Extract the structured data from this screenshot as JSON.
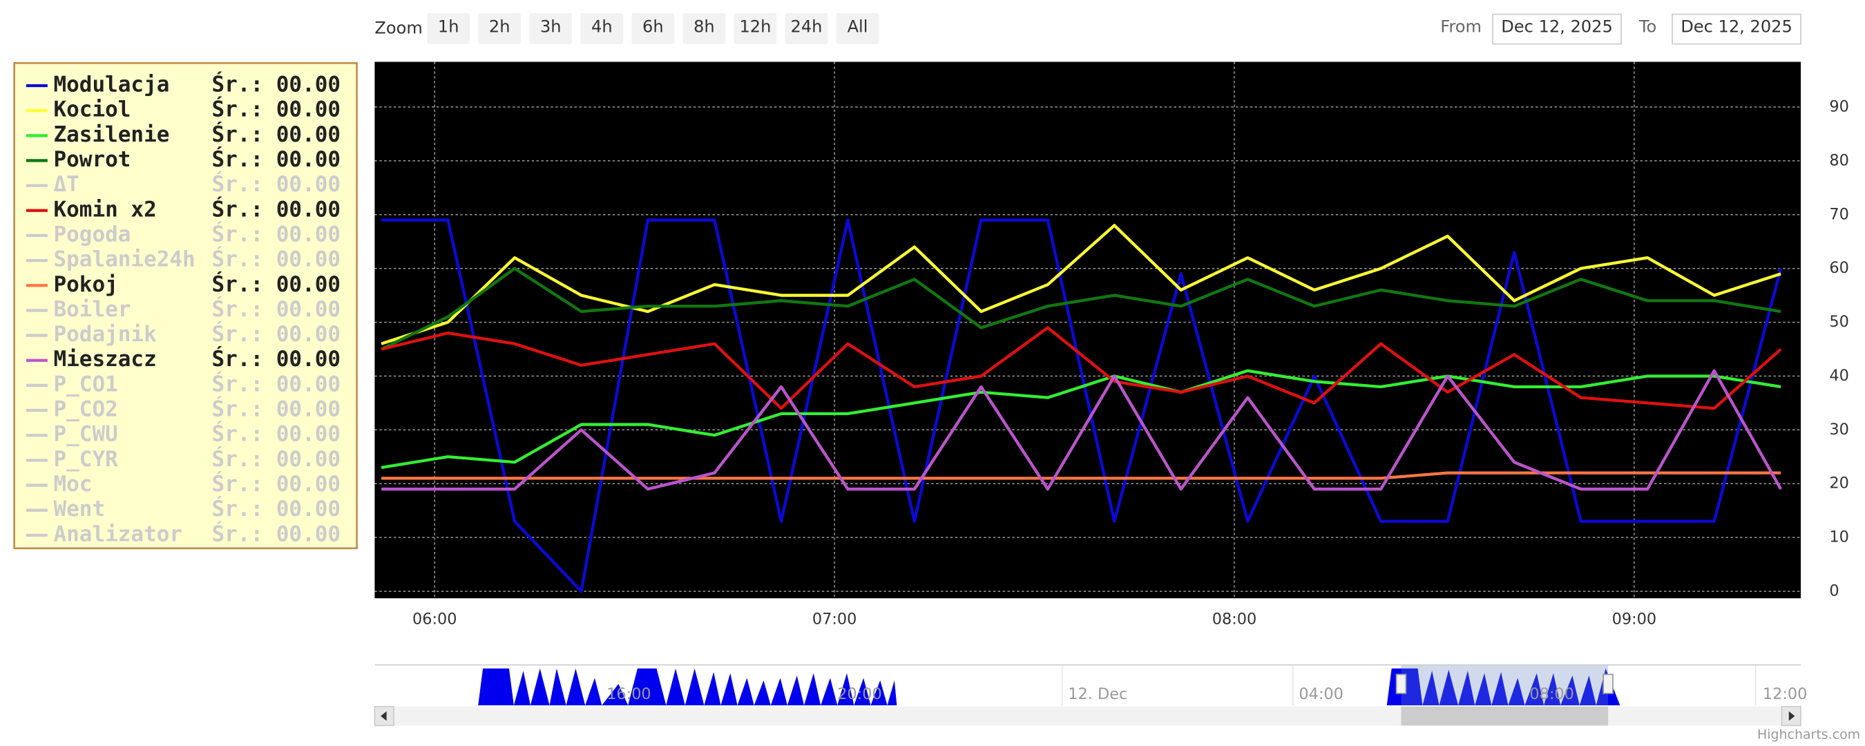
{
  "ui": {
    "zoom_label": "Zoom",
    "zoom_buttons": [
      "1h",
      "2h",
      "3h",
      "4h",
      "6h",
      "8h",
      "12h",
      "24h",
      "All"
    ],
    "from_label": "From",
    "from_value": "Dec 12, 2025",
    "to_label": "To",
    "to_value": "Dec 12, 2025",
    "navigator_labels": [
      "16:00",
      "20:00",
      "12. Dec",
      "04:00",
      "08:00",
      "12:00"
    ],
    "credit": "Highcharts.com"
  },
  "chart_data": {
    "type": "line",
    "x": [
      "05:52",
      "06:02",
      "06:12",
      "06:22",
      "06:32",
      "06:42",
      "06:52",
      "07:02",
      "07:12",
      "07:22",
      "07:32",
      "07:42",
      "07:52",
      "08:02",
      "08:12",
      "08:22",
      "08:32",
      "08:42",
      "08:52",
      "09:02",
      "09:12",
      "09:22"
    ],
    "xlim": [
      "05:51",
      "09:25"
    ],
    "xticks": [
      "06:00",
      "07:00",
      "08:00",
      "09:00"
    ],
    "ylim": [
      -1.3,
      98.4
    ],
    "yticks": [
      0,
      10,
      20,
      30,
      40,
      50,
      60,
      70,
      80,
      90
    ],
    "grid": true,
    "series": [
      {
        "name": "Modulacja",
        "legend_label": "Śr.: 00.00",
        "visible": true,
        "color": "#0a0ad8",
        "values": [
          69,
          69,
          13,
          0,
          69,
          69,
          13,
          69,
          13,
          69,
          69,
          13,
          59,
          13,
          40,
          13,
          13,
          63,
          13,
          13,
          13,
          60
        ]
      },
      {
        "name": "Kociol",
        "legend_label": "Śr.: 00.00",
        "visible": true,
        "color": "#ffff33",
        "values": [
          46,
          50,
          62,
          55,
          52,
          57,
          55,
          55,
          64,
          52,
          57,
          68,
          56,
          62,
          56,
          60,
          66,
          54,
          60,
          62,
          55,
          59
        ]
      },
      {
        "name": "Zasilenie",
        "legend_label": "Śr.: 00.00",
        "visible": true,
        "color": "#33ee33",
        "values": [
          23,
          25,
          24,
          31,
          31,
          29,
          33,
          33,
          35,
          37,
          36,
          40,
          37,
          41,
          39,
          38,
          40,
          38,
          38,
          40,
          40,
          38
        ]
      },
      {
        "name": "Powrot",
        "legend_label": "Śr.: 00.00",
        "visible": true,
        "color": "#117711",
        "values": [
          45,
          51,
          60,
          52,
          53,
          53,
          54,
          53,
          58,
          49,
          53,
          55,
          53,
          58,
          53,
          56,
          54,
          53,
          58,
          54,
          54,
          52
        ]
      },
      {
        "name": "ΔT",
        "legend_label": "Śr.: 00.00",
        "visible": false
      },
      {
        "name": "Komin x2",
        "legend_label": "Śr.: 00.00",
        "visible": true,
        "color": "#dd1111",
        "values": [
          45,
          48,
          46,
          42,
          44,
          46,
          34,
          46,
          38,
          40,
          49,
          39,
          37,
          40,
          35,
          46,
          37,
          44,
          36,
          35,
          34,
          45
        ]
      },
      {
        "name": "Pogoda",
        "legend_label": "Śr.: 00.00",
        "visible": false
      },
      {
        "name": "Spalanie24h",
        "legend_label": "Śr.: 00.00",
        "visible": false
      },
      {
        "name": "Pokoj",
        "legend_label": "Śr.: 00.00",
        "visible": true,
        "color": "#ff7744",
        "values": [
          21,
          21,
          21,
          21,
          21,
          21,
          21,
          21,
          21,
          21,
          21,
          21,
          21,
          21,
          21,
          21,
          22,
          22,
          22,
          22,
          22,
          22
        ]
      },
      {
        "name": "Boiler",
        "legend_label": "Śr.: 00.00",
        "visible": false
      },
      {
        "name": "Podajnik",
        "legend_label": "Śr.: 00.00",
        "visible": false
      },
      {
        "name": "Mieszacz",
        "legend_label": "Śr.: 00.00",
        "visible": true,
        "color": "#bb55cc",
        "values": [
          19,
          19,
          19,
          30,
          19,
          22,
          38,
          19,
          19,
          38,
          19,
          40,
          19,
          36,
          19,
          19,
          40,
          24,
          19,
          19,
          41,
          19
        ]
      },
      {
        "name": "P_CO1",
        "legend_label": "Śr.: 00.00",
        "visible": false
      },
      {
        "name": "P_CO2",
        "legend_label": "Śr.: 00.00",
        "visible": false
      },
      {
        "name": "P_CWU",
        "legend_label": "Śr.: 00.00",
        "visible": false
      },
      {
        "name": "P_CYR",
        "legend_label": "Śr.: 00.00",
        "visible": false
      },
      {
        "name": "Moc",
        "legend_label": "Śr.: 00.00",
        "visible": false
      },
      {
        "name": "Went",
        "legend_label": "Śr.: 00.00",
        "visible": false
      },
      {
        "name": "Analizator",
        "legend_label": "Śr.: 00.00",
        "visible": false
      }
    ]
  }
}
